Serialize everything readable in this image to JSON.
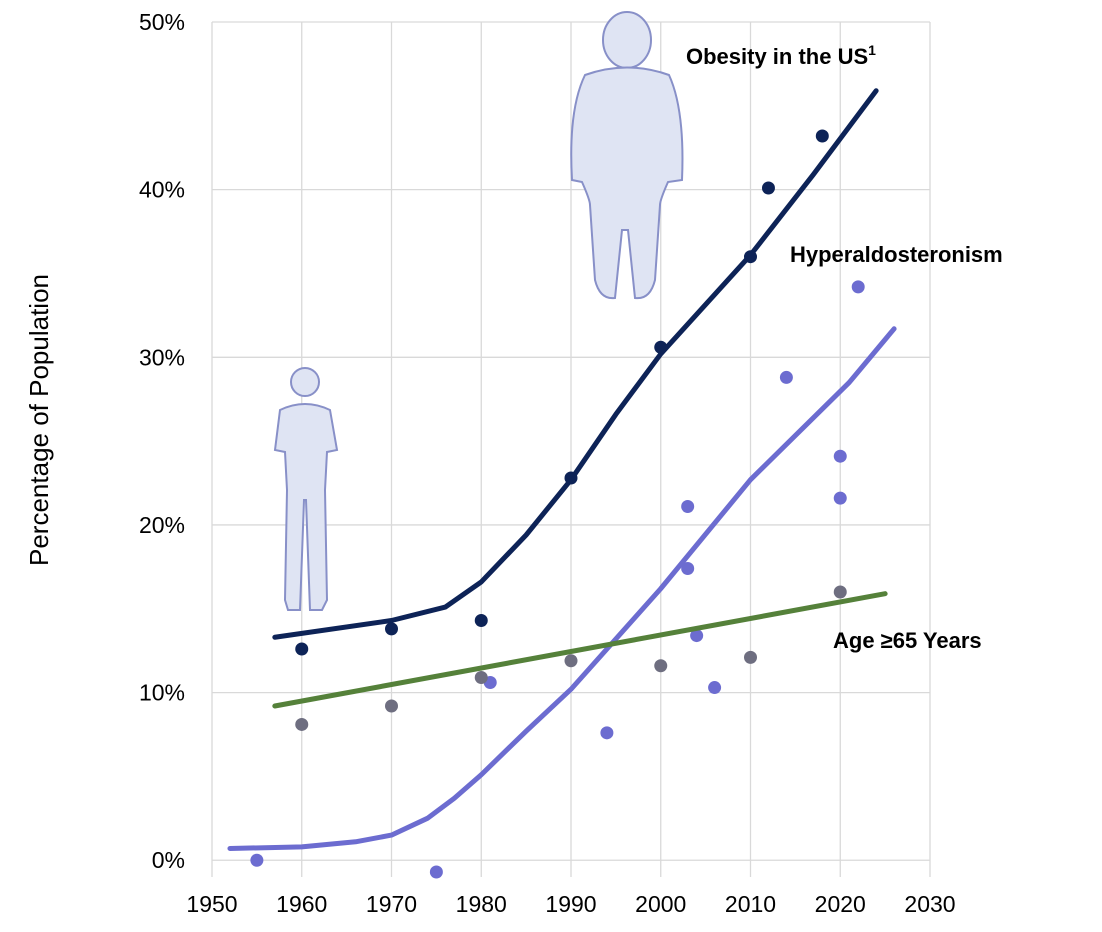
{
  "chart_data": {
    "type": "scatter",
    "y_label": "Percentage of Population",
    "xlim": [
      1950,
      2030
    ],
    "xticks": [
      1950,
      1960,
      1970,
      1980,
      1990,
      2000,
      2010,
      2020,
      2030
    ],
    "ylim": [
      -1,
      50
    ],
    "yticks": [
      {
        "value": 0,
        "label": "0%"
      },
      {
        "value": 10,
        "label": "10%"
      },
      {
        "value": 20,
        "label": "20%"
      },
      {
        "value": 30,
        "label": "30%"
      },
      {
        "value": 40,
        "label": "40%"
      },
      {
        "value": 50,
        "label": "50%"
      }
    ],
    "grid": true,
    "series": [
      {
        "name": "Obesity in the US",
        "superscript": "1",
        "color": "#0d2357",
        "dot_color": "#0d2357",
        "x": [
          1960,
          1970,
          1980,
          1990,
          2000,
          2010,
          2012,
          2018
        ],
        "values": [
          12.6,
          13.8,
          14.3,
          22.8,
          30.6,
          36.0,
          40.1,
          43.2
        ],
        "trend_x": [
          1957,
          1970,
          1976,
          1980,
          1985,
          1990,
          1995,
          2000,
          2010,
          2017,
          2024
        ],
        "trend_values": [
          13.3,
          14.3,
          15.1,
          16.6,
          19.4,
          22.7,
          26.6,
          30.2,
          36.1,
          40.9,
          45.9
        ]
      },
      {
        "name": "Hyperaldosteronism",
        "color": "#6c6cd0",
        "dot_color": "#6c6cd0",
        "x": [
          1955,
          1975,
          1981,
          1994,
          2003,
          2003,
          2004,
          2006,
          2014,
          2020,
          2020,
          2022
        ],
        "values": [
          0.0,
          -0.7,
          10.6,
          7.6,
          21.1,
          17.4,
          13.4,
          10.3,
          28.8,
          24.1,
          21.6,
          34.2
        ],
        "trend_x": [
          1952,
          1960,
          1966,
          1970,
          1974,
          1977,
          1980,
          1985,
          1990,
          2000,
          2010,
          2021,
          2026
        ],
        "trend_values": [
          0.7,
          0.8,
          1.1,
          1.5,
          2.5,
          3.7,
          5.1,
          7.7,
          10.2,
          16.2,
          22.7,
          28.5,
          31.7
        ]
      },
      {
        "name": "Age ≥65 Years",
        "color": "#55813a",
        "dot_color": "#6e6e80",
        "x": [
          1960,
          1970,
          1980,
          1990,
          2000,
          2010,
          2020
        ],
        "values": [
          8.1,
          9.2,
          10.9,
          11.9,
          11.6,
          12.1,
          16.0
        ],
        "trend_x": [
          1957,
          2025
        ],
        "trend_values": [
          9.2,
          15.9
        ]
      }
    ]
  }
}
